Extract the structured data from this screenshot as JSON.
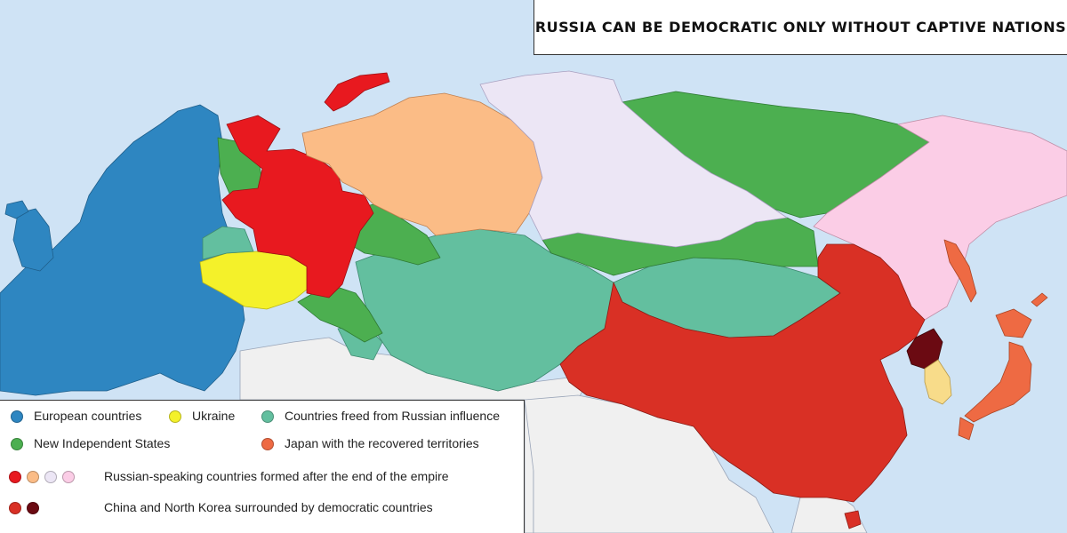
{
  "title": "RUSSIA CAN BE DEMOCRATIC ONLY WITHOUT CAPTIVE NATIONS",
  "colors": {
    "sea": "#cfe3f5",
    "europe": "#2e86c1",
    "ukraine": "#f4f12a",
    "freed": "#63bf9f",
    "new_states": "#4caf50",
    "japan": "#ee6a43",
    "russia_red": "#e8191f",
    "russia_orange": "#fbbc86",
    "russia_lavender": "#ece6f5",
    "russia_pink": "#fbcde6",
    "china": "#d93025",
    "north_korea": "#6b0a12",
    "south_korea": "#f8dc8a",
    "other_land": "#f0f0f0"
  },
  "legend": {
    "europe": "European countries",
    "ukraine": "Ukraine",
    "freed": "Countries freed from Russian influence",
    "new_states": "New Independent States",
    "japan": "Japan with the recovered territories",
    "russian_speaking": "Russian-speaking countries formed after the end of the empire",
    "china_nk": "China and North Korea surrounded by democratic countries"
  }
}
